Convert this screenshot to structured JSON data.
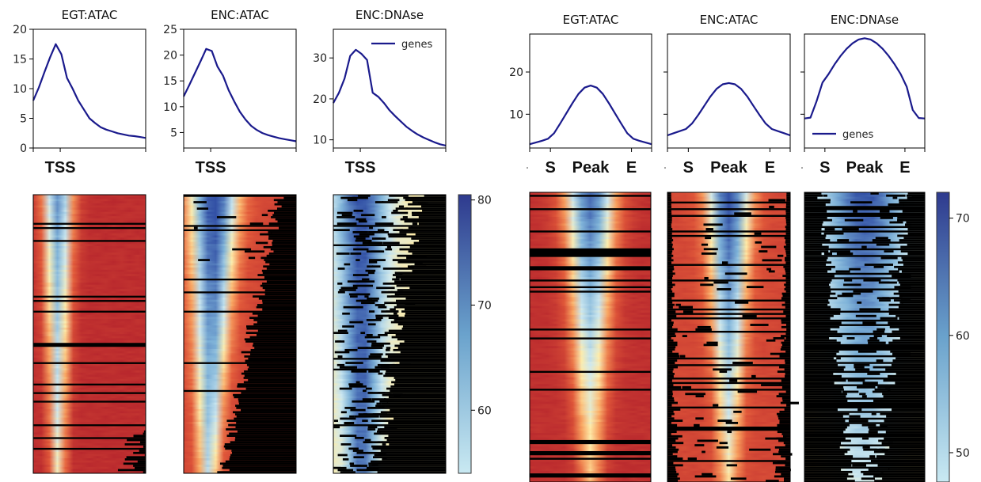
{
  "chart_data": [
    {
      "type": "line",
      "title": "EGT:ATAC",
      "group": "TSS",
      "ylim": [
        0,
        20
      ],
      "yticks": [
        0,
        5,
        10,
        15,
        20
      ],
      "xticks": [
        "TSS"
      ],
      "series": [
        {
          "name": "genes",
          "values": [
            8,
            10.2,
            12.8,
            15.3,
            17.5,
            15.8,
            11.8,
            10,
            8,
            6.5,
            5,
            4.2,
            3.5,
            3.1,
            2.8,
            2.5,
            2.3,
            2.1,
            2.0,
            1.85,
            1.7
          ]
        }
      ],
      "line_color": "#1a1a8c"
    },
    {
      "type": "line",
      "title": "ENC:ATAC",
      "group": "TSS",
      "ylim": [
        2,
        25
      ],
      "yticks": [
        5,
        10,
        15,
        20,
        25
      ],
      "xticks": [
        "TSS"
      ],
      "series": [
        {
          "name": "genes",
          "values": [
            12,
            14.2,
            16.5,
            18.8,
            21.2,
            20.8,
            17.8,
            16,
            13.2,
            11,
            9,
            7.5,
            6.3,
            5.5,
            4.9,
            4.5,
            4.2,
            3.9,
            3.7,
            3.5,
            3.3
          ]
        }
      ],
      "line_color": "#1a1a8c"
    },
    {
      "type": "line",
      "title": "ENC:DNAse",
      "group": "TSS",
      "ylim": [
        8,
        37
      ],
      "yticks": [
        10,
        20,
        30
      ],
      "xticks": [
        "TSS"
      ],
      "legend": {
        "label": "genes",
        "position": "top-right"
      },
      "series": [
        {
          "name": "genes",
          "values": [
            19,
            21.5,
            25,
            30.5,
            32,
            31,
            29.5,
            21.5,
            20.5,
            19,
            17.2,
            15.8,
            14.5,
            13.2,
            12.2,
            11.3,
            10.6,
            10,
            9.4,
            8.9,
            8.6
          ]
        }
      ],
      "line_color": "#1a1a8c"
    },
    {
      "type": "line",
      "title": "EGT:ATAC",
      "group": "Peak",
      "ylim": [
        2,
        29
      ],
      "yticks": [
        10,
        20
      ],
      "xticks": [
        "S",
        "Peak",
        "E"
      ],
      "series": [
        {
          "name": "genes",
          "values": [
            2.9,
            3.3,
            3.7,
            4.2,
            5.5,
            7.8,
            10.2,
            12.6,
            14.8,
            16.3,
            16.8,
            16.3,
            14.8,
            12.6,
            10.2,
            7.8,
            5.5,
            4.2,
            3.7,
            3.3,
            2.9
          ]
        }
      ],
      "line_color": "#1a1a8c"
    },
    {
      "type": "line",
      "title": "ENC:ATAC",
      "group": "Peak",
      "ylim": [
        2,
        29
      ],
      "yticks": [
        10,
        20
      ],
      "xticks": [
        "S",
        "Peak",
        "E"
      ],
      "series": [
        {
          "name": "genes",
          "values": [
            5,
            5.5,
            6,
            6.5,
            7.8,
            9.8,
            12,
            14.2,
            16,
            17.1,
            17.4,
            17.1,
            16,
            14.2,
            12,
            9.8,
            7.8,
            6.5,
            6,
            5.5,
            5
          ]
        }
      ],
      "line_color": "#1a1a8c"
    },
    {
      "type": "line",
      "title": "ENC:DNAse",
      "group": "Peak",
      "ylim": [
        2,
        29
      ],
      "yticks": [
        10,
        20
      ],
      "xticks": [
        "S",
        "Peak",
        "E"
      ],
      "legend": {
        "label": "genes",
        "position": "lower-left"
      },
      "series": [
        {
          "name": "genes",
          "values": [
            9,
            9.2,
            13,
            17.5,
            19.5,
            21.8,
            23.8,
            25.5,
            26.8,
            27.7,
            28,
            27.7,
            26.8,
            25.5,
            23.8,
            21.8,
            19.5,
            16.5,
            11,
            9.1,
            9
          ]
        }
      ],
      "line_color": "#1a1a8c"
    },
    {
      "type": "heatmap",
      "group": "TSS",
      "panels": [
        "EGT:ATAC",
        "ENC:ATAC",
        "ENC:DNAse"
      ],
      "colormap": "RdYlBu_r",
      "missing_color": "#000000",
      "colorbar": {
        "range": [
          54,
          80.5
        ],
        "ticks": [
          60,
          70,
          80
        ]
      }
    },
    {
      "type": "heatmap",
      "group": "Peak",
      "panels": [
        "EGT:ATAC",
        "ENC:ATAC",
        "ENC:DNAse"
      ],
      "colormap": "RdYlBu_r",
      "missing_color": "#000000",
      "colorbar": {
        "range": [
          47.5,
          72.2
        ],
        "ticks": [
          50,
          60,
          70
        ]
      }
    }
  ]
}
